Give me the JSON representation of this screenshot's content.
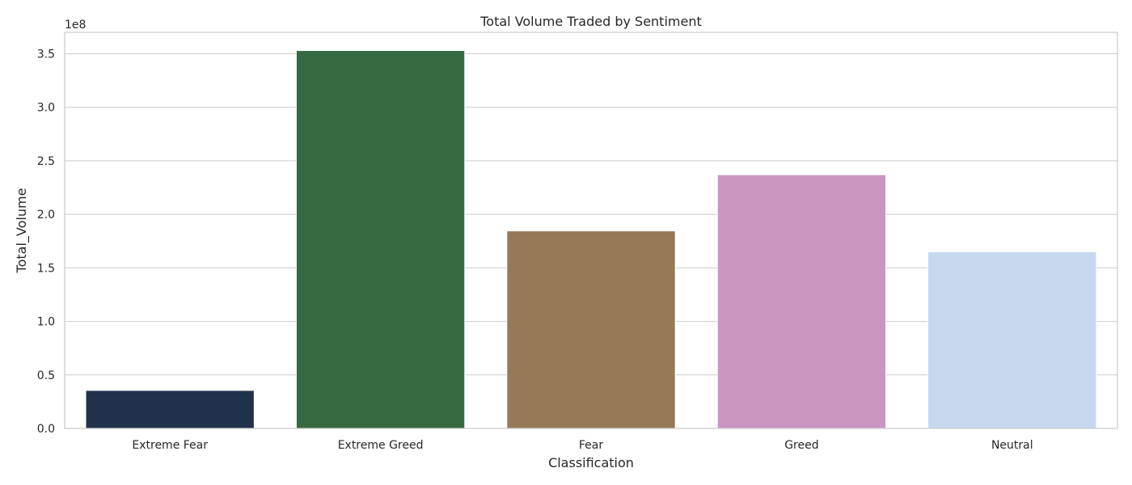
{
  "chart_data": {
    "type": "bar",
    "title": "Total Volume Traded by Sentiment",
    "xlabel": "Classification",
    "ylabel": "Total_Volume",
    "scale_label": "1e8",
    "categories": [
      "Extreme Fear",
      "Extreme Greed",
      "Fear",
      "Greed",
      "Neutral"
    ],
    "values": [
      35500000,
      353000000,
      184500000,
      237000000,
      165000000
    ],
    "colors": [
      "#21304b",
      "#356a40",
      "#967955",
      "#ca96c1",
      "#c7d8ee"
    ],
    "ylim": [
      0,
      370000000
    ],
    "yticks": [
      0,
      50000000,
      100000000,
      150000000,
      200000000,
      250000000,
      300000000,
      350000000
    ],
    "ytick_labels": [
      "0.0",
      "0.5",
      "1.0",
      "1.5",
      "2.0",
      "2.5",
      "3.0",
      "3.5"
    ],
    "grid": true,
    "legend": "none"
  }
}
